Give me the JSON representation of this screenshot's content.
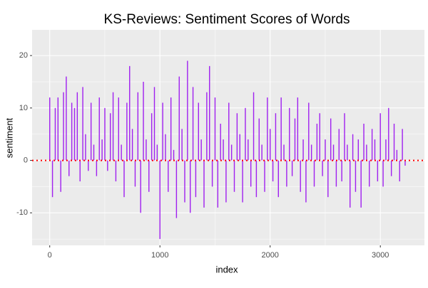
{
  "chart_data": {
    "type": "bar",
    "title": "KS-Reviews: Sentiment Scores of Words",
    "xlabel": "index",
    "ylabel": "sentiment",
    "color": "#a020f0",
    "x": [
      0,
      25,
      50,
      75,
      100,
      125,
      150,
      175,
      200,
      225,
      250,
      275,
      300,
      325,
      350,
      375,
      400,
      425,
      450,
      475,
      500,
      525,
      550,
      575,
      600,
      625,
      650,
      675,
      700,
      725,
      750,
      775,
      800,
      825,
      850,
      875,
      900,
      925,
      950,
      975,
      1000,
      1025,
      1050,
      1075,
      1100,
      1125,
      1150,
      1175,
      1200,
      1225,
      1250,
      1275,
      1300,
      1325,
      1350,
      1375,
      1400,
      1425,
      1450,
      1475,
      1500,
      1525,
      1550,
      1575,
      1600,
      1625,
      1650,
      1675,
      1700,
      1725,
      1750,
      1775,
      1800,
      1825,
      1850,
      1875,
      1900,
      1925,
      1950,
      1975,
      2000,
      2025,
      2050,
      2075,
      2100,
      2125,
      2150,
      2175,
      2200,
      2225,
      2250,
      2275,
      2300,
      2325,
      2350,
      2375,
      2400,
      2425,
      2450,
      2475,
      2500,
      2525,
      2550,
      2575,
      2600,
      2625,
      2650,
      2675,
      2700,
      2725,
      2750,
      2775,
      2800,
      2825,
      2850,
      2875,
      2900,
      2925,
      2950,
      2975,
      3000,
      3025,
      3050,
      3075,
      3100,
      3125,
      3150,
      3175,
      3200,
      3225
    ],
    "values": [
      12,
      -7,
      10,
      12,
      -6,
      13,
      16,
      -3,
      11,
      10,
      13,
      -4,
      14,
      5,
      -2,
      11,
      3,
      -3,
      12,
      4,
      10,
      -2,
      9,
      13,
      -4,
      12,
      3,
      -7,
      11,
      18,
      6,
      -5,
      13,
      -10,
      15,
      4,
      -6,
      9,
      14,
      3,
      -15,
      11,
      5,
      -6,
      12,
      2,
      -11,
      16,
      6,
      -8,
      19,
      -10,
      14,
      -7,
      11,
      4,
      -9,
      13,
      18,
      -5,
      12,
      -9,
      7,
      4,
      -8,
      11,
      3,
      -6,
      9,
      5,
      -8,
      10,
      4,
      -5,
      13,
      -7,
      8,
      3,
      -6,
      12,
      6,
      -4,
      9,
      -7,
      12,
      3,
      -5,
      10,
      -3,
      8,
      12,
      -6,
      4,
      -8,
      11,
      3,
      -5,
      7,
      9,
      -3,
      4,
      -7,
      8,
      3,
      -5,
      6,
      -4,
      9,
      3,
      -9,
      5,
      -6,
      4,
      -9,
      7,
      3,
      -5,
      6,
      4,
      -4,
      9,
      -5,
      4,
      10,
      -3,
      7,
      2,
      -4,
      6,
      -1
    ],
    "xlim": [
      -160,
      3400
    ],
    "ylim": [
      -16.2,
      24.9
    ],
    "xticks": [
      0,
      1000,
      2000,
      3000
    ],
    "yticks": [
      -10,
      0,
      10,
      20
    ],
    "grid": true,
    "reference_line": {
      "value": 0,
      "color": "red"
    }
  }
}
